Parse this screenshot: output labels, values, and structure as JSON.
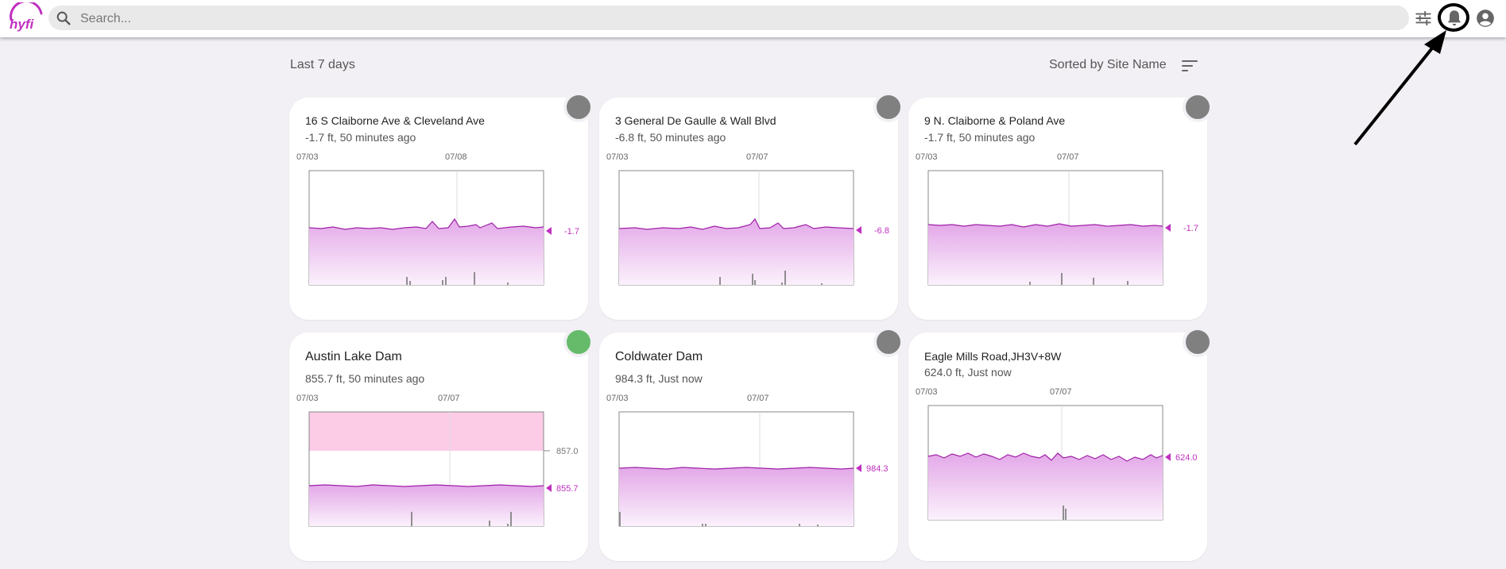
{
  "header": {
    "logo_text": "hyfi",
    "search_placeholder": "Search...",
    "icons": [
      "search-icon",
      "filter-sliders-icon",
      "bell-icon",
      "account-circle-icon"
    ]
  },
  "toolbar": {
    "period_label": "Last 7 days",
    "sort_label": "Sorted by Site Name",
    "sort_icon": "sort-icon"
  },
  "colors": {
    "accent": "#c030c0",
    "status_gray": "#808080",
    "status_green": "#66bb6a",
    "threshold_band": "#fccbe6"
  },
  "cards": [
    {
      "title": "16 S Claiborne Ave & Cleveland Ave",
      "subtitle": "-1.7 ft, 50 minutes ago",
      "status": "gray",
      "chart_data": {
        "type": "area",
        "x_ticks": [
          "07/03",
          "07/08"
        ],
        "current_value_label": "-1.7"
      }
    },
    {
      "title": "3 General De Gaulle & Wall Blvd",
      "subtitle": "-6.8 ft, 50 minutes ago",
      "status": "gray",
      "chart_data": {
        "type": "area",
        "x_ticks": [
          "07/03",
          "07/07"
        ],
        "current_value_label": "-6.8"
      }
    },
    {
      "title": "9 N. Claiborne & Poland Ave",
      "subtitle": "-1.7 ft, 50 minutes ago",
      "status": "gray",
      "chart_data": {
        "type": "area",
        "x_ticks": [
          "07/03",
          "07/07"
        ],
        "current_value_label": "-1.7"
      }
    },
    {
      "title": "Austin Lake Dam",
      "subtitle": "855.7 ft, 50 minutes ago",
      "status": "green",
      "chart_data": {
        "type": "area",
        "x_ticks": [
          "07/03",
          "07/07"
        ],
        "current_value_label": "855.7",
        "threshold_label": "857.0"
      }
    },
    {
      "title": "Coldwater Dam",
      "subtitle": "984.3 ft, Just now",
      "status": "gray",
      "chart_data": {
        "type": "area",
        "x_ticks": [
          "07/03",
          "07/07"
        ],
        "current_value_label": "984.3"
      }
    },
    {
      "title": "Eagle Mills Road,JH3V+8W",
      "subtitle": "624.0 ft, Just now",
      "status": "gray",
      "chart_data": {
        "type": "area",
        "x_ticks": [
          "07/03",
          "07/07"
        ],
        "current_value_label": "624.0"
      }
    }
  ]
}
